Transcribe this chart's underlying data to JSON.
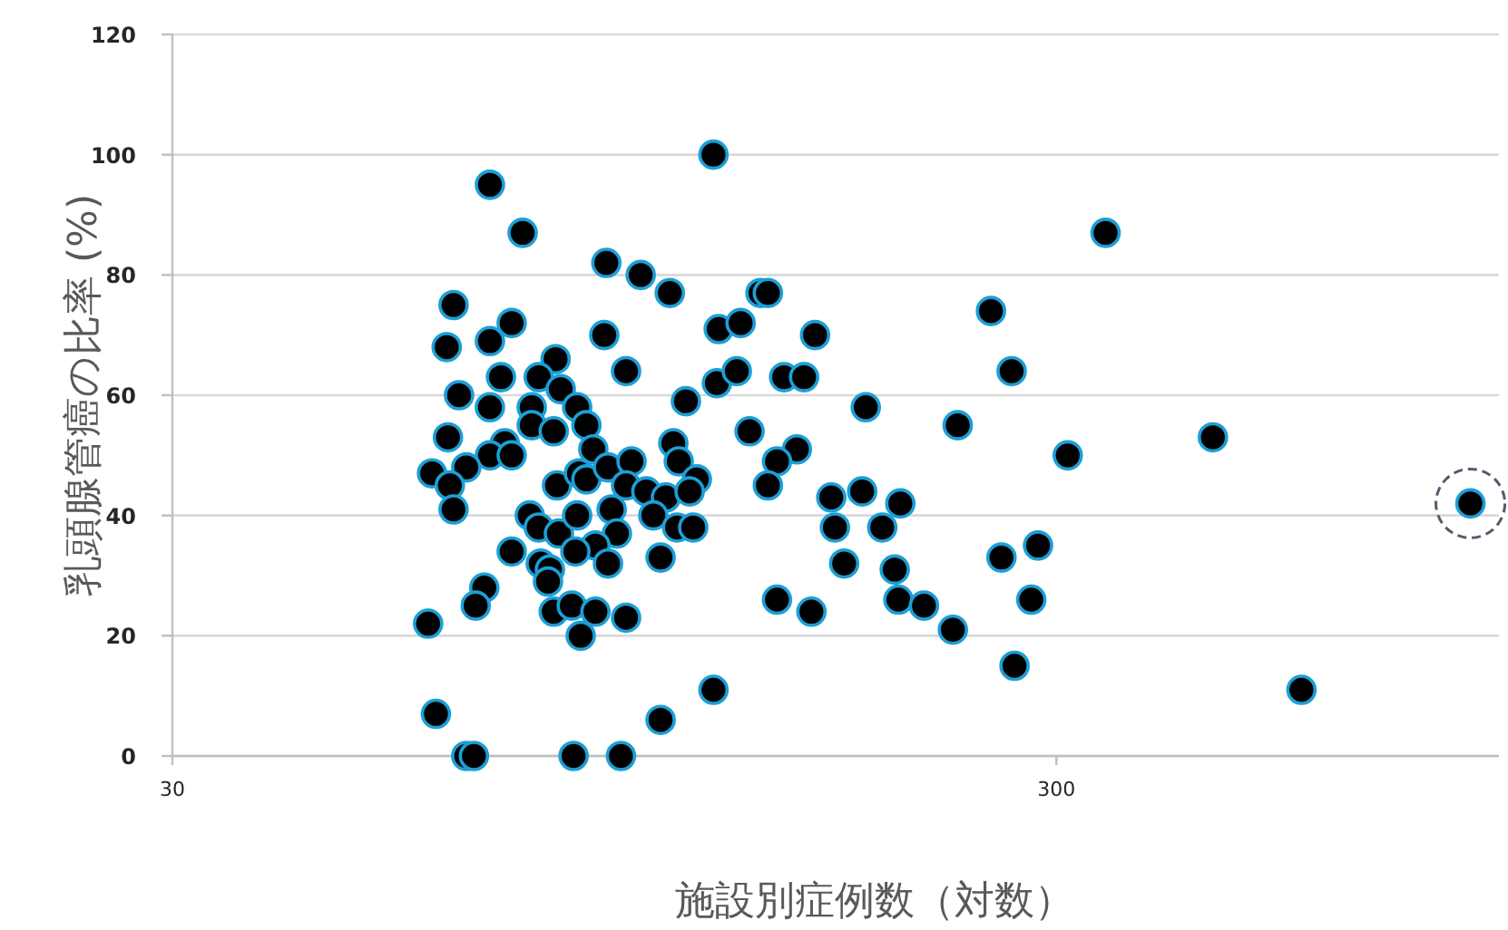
{
  "chart_data": {
    "type": "scatter",
    "xlabel": "施設別症例数（対数）",
    "ylabel": "乳頭腺管癌の比率 (%)",
    "log": "x",
    "xlim": [
      30,
      950
    ],
    "xticks": [
      30,
      300
    ],
    "ylim": [
      0,
      120
    ],
    "yticks": [
      0,
      20,
      40,
      60,
      80,
      100,
      120
    ],
    "grid": "y",
    "marker": "circle",
    "series": [
      {
        "color": "#000000",
        "x": [
          68.6,
          74.7,
          92.9,
          101.6,
          109.6,
          62.4,
          72.6,
          61.3,
          68.6,
          92.4,
          81.4,
          77.9,
          97.8,
          70.6,
          82.5,
          63.3,
          68.6,
          76.5,
          86.1,
          114.3,
          124.5,
          131.8,
          123.9,
          130.5,
          134.9,
          138.8,
          61.5,
          76.5,
          81.0,
          88.2,
          71.3,
          68.6,
          72.6,
          89.8,
          110.6,
          59.0,
          64.5,
          61.8,
          62.4,
          81.7,
          86.5,
          88.2,
          93.3,
          99.2,
          112.2,
          97.8,
          103.1,
          108.5,
          117.6,
          115.4,
          76.1,
          77.9,
          82.1,
          86.1,
          94.2,
          95.5,
          105.0,
          111.7,
          116.5,
          90.3,
          85.7,
          93.3,
          72.6,
          78.3,
          80.2,
          107.0,
          67.6,
          66.1,
          79.8,
          81.0,
          84.9,
          90.3,
          86.9,
          97.8,
          58.4,
          59.6,
          64.5,
          65.8,
          85.3,
          96.5,
          107.0,
          122.8,
          122.8,
          141.5,
          160.0,
          147.6,
          155.5,
          253,
          267,
          182.6,
          232,
          309,
          152.6,
          144.9,
          141.5,
          166.9,
          180.9,
          199.8,
          168.5,
          190.6,
          172.6,
          196.9,
          260,
          286,
          144.9,
          158.5,
          198.8,
          212.5,
          229.1,
          281,
          269,
          341,
          451,
          568,
          882
        ],
        "values": [
          95,
          87,
          82,
          80,
          77,
          75,
          72,
          68,
          69,
          70,
          66,
          63,
          64,
          63,
          61,
          60,
          58,
          58,
          58,
          59,
          71,
          72,
          62,
          64,
          54,
          77,
          53,
          55,
          54,
          55,
          52,
          50,
          50,
          51,
          52,
          47,
          48,
          45,
          41,
          45,
          47,
          46,
          48,
          49,
          49,
          45,
          44,
          43,
          46,
          44,
          40,
          38,
          37,
          40,
          41,
          37,
          40,
          38,
          38,
          35,
          34,
          32,
          34,
          32,
          31,
          33,
          28,
          25,
          29,
          24,
          25,
          24,
          20,
          23,
          22,
          7,
          0,
          0,
          0,
          0,
          6,
          11,
          100,
          77,
          70,
          63,
          63,
          74,
          64,
          58,
          55,
          50,
          51,
          49,
          45,
          43,
          44,
          42,
          38,
          38,
          32,
          31,
          33,
          35,
          26,
          24,
          26,
          25,
          21,
          26,
          15,
          87,
          53,
          11,
          42
        ]
      }
    ]
  }
}
